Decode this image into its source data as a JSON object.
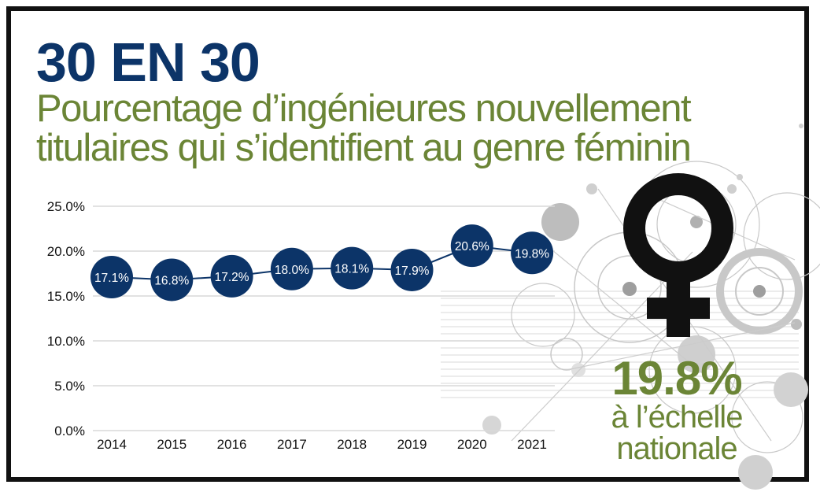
{
  "header": {
    "title": "30 EN 30",
    "subtitle_line1": "Pourcentage d’ingénieures nouvellement",
    "subtitle_line2": "titulaires qui s’identifient au genre féminin"
  },
  "highlight": {
    "value": "19.8%",
    "line1": "à l’échelle",
    "line2": "nationale"
  },
  "icons": {
    "symbol": "female-symbol-icon",
    "background": "decorative-circles-pattern"
  },
  "colors": {
    "navy": "#0c3468",
    "green": "#6b8536",
    "grid": "#d9d9d9",
    "deco": "#c8c8c8"
  },
  "chart_data": {
    "type": "line",
    "categories": [
      "2014",
      "2015",
      "2016",
      "2017",
      "2018",
      "2019",
      "2020",
      "2021"
    ],
    "values": [
      17.1,
      16.8,
      17.2,
      18.0,
      18.1,
      17.9,
      20.6,
      19.8
    ],
    "data_labels": [
      "17.1%",
      "16.8%",
      "17.2%",
      "18.0%",
      "18.1%",
      "17.9%",
      "20.6%",
      "19.8%"
    ],
    "y_ticks": [
      "0.0%",
      "5.0%",
      "10.0%",
      "15.0%",
      "20.0%",
      "25.0%"
    ],
    "ylim": [
      0,
      25
    ],
    "grid": true,
    "legend": "none",
    "marker": "filled-circle-with-label"
  }
}
